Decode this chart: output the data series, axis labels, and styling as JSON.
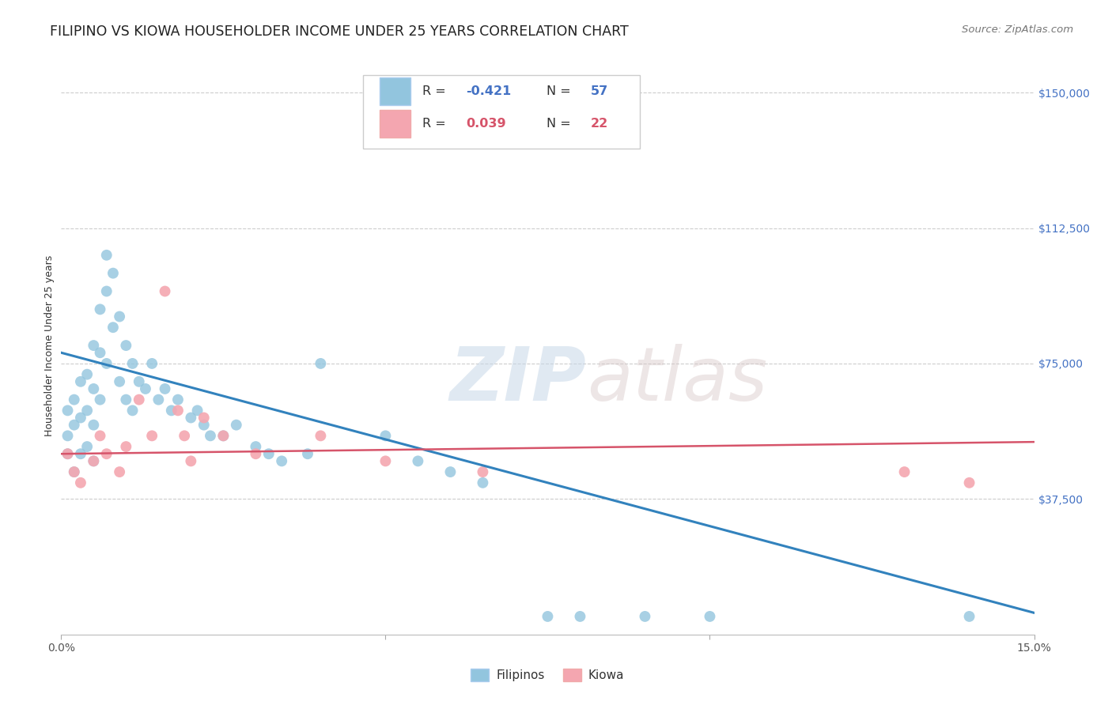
{
  "title": "FILIPINO VS KIOWA HOUSEHOLDER INCOME UNDER 25 YEARS CORRELATION CHART",
  "source": "Source: ZipAtlas.com",
  "ylabel": "Householder Income Under 25 years",
  "ytick_labels": [
    "$150,000",
    "$112,500",
    "$75,000",
    "$37,500"
  ],
  "ytick_values": [
    150000,
    112500,
    75000,
    37500
  ],
  "ymin": 0,
  "ymax": 160000,
  "xmin": 0.0,
  "xmax": 0.15,
  "watermark_zip": "ZIP",
  "watermark_atlas": "atlas",
  "legend_r_filipino": "-0.421",
  "legend_n_filipino": "57",
  "legend_r_kiowa": "0.039",
  "legend_n_kiowa": "22",
  "filipino_color": "#92c5de",
  "kiowa_color": "#f4a6b0",
  "filipino_line_color": "#3282bd",
  "kiowa_line_color": "#d6546a",
  "background_color": "#ffffff",
  "grid_color": "#cccccc",
  "filipino_x": [
    0.001,
    0.001,
    0.001,
    0.002,
    0.002,
    0.002,
    0.003,
    0.003,
    0.003,
    0.004,
    0.004,
    0.004,
    0.005,
    0.005,
    0.005,
    0.005,
    0.006,
    0.006,
    0.006,
    0.007,
    0.007,
    0.007,
    0.008,
    0.008,
    0.009,
    0.009,
    0.01,
    0.01,
    0.011,
    0.011,
    0.012,
    0.013,
    0.014,
    0.015,
    0.016,
    0.017,
    0.018,
    0.02,
    0.021,
    0.022,
    0.023,
    0.025,
    0.027,
    0.03,
    0.032,
    0.034,
    0.038,
    0.04,
    0.05,
    0.055,
    0.06,
    0.065,
    0.075,
    0.08,
    0.09,
    0.1,
    0.14
  ],
  "filipino_y": [
    55000,
    62000,
    50000,
    65000,
    58000,
    45000,
    70000,
    60000,
    50000,
    72000,
    62000,
    52000,
    80000,
    68000,
    58000,
    48000,
    90000,
    78000,
    65000,
    105000,
    95000,
    75000,
    100000,
    85000,
    88000,
    70000,
    80000,
    65000,
    75000,
    62000,
    70000,
    68000,
    75000,
    65000,
    68000,
    62000,
    65000,
    60000,
    62000,
    58000,
    55000,
    55000,
    58000,
    52000,
    50000,
    48000,
    50000,
    75000,
    55000,
    48000,
    45000,
    42000,
    5000,
    5000,
    5000,
    5000,
    5000
  ],
  "kiowa_x": [
    0.001,
    0.002,
    0.003,
    0.005,
    0.006,
    0.007,
    0.009,
    0.01,
    0.012,
    0.014,
    0.016,
    0.018,
    0.019,
    0.02,
    0.022,
    0.025,
    0.03,
    0.04,
    0.05,
    0.065,
    0.13,
    0.14
  ],
  "kiowa_y": [
    50000,
    45000,
    42000,
    48000,
    55000,
    50000,
    45000,
    52000,
    65000,
    55000,
    95000,
    62000,
    55000,
    48000,
    60000,
    55000,
    50000,
    55000,
    48000,
    45000,
    45000,
    42000
  ],
  "filipino_slope": -480000,
  "filipino_intercept": 78000,
  "kiowa_slope": 22000,
  "kiowa_intercept": 50000,
  "title_fontsize": 12.5,
  "axis_label_fontsize": 9,
  "tick_fontsize": 10,
  "source_fontsize": 9.5,
  "marker_size": 100
}
